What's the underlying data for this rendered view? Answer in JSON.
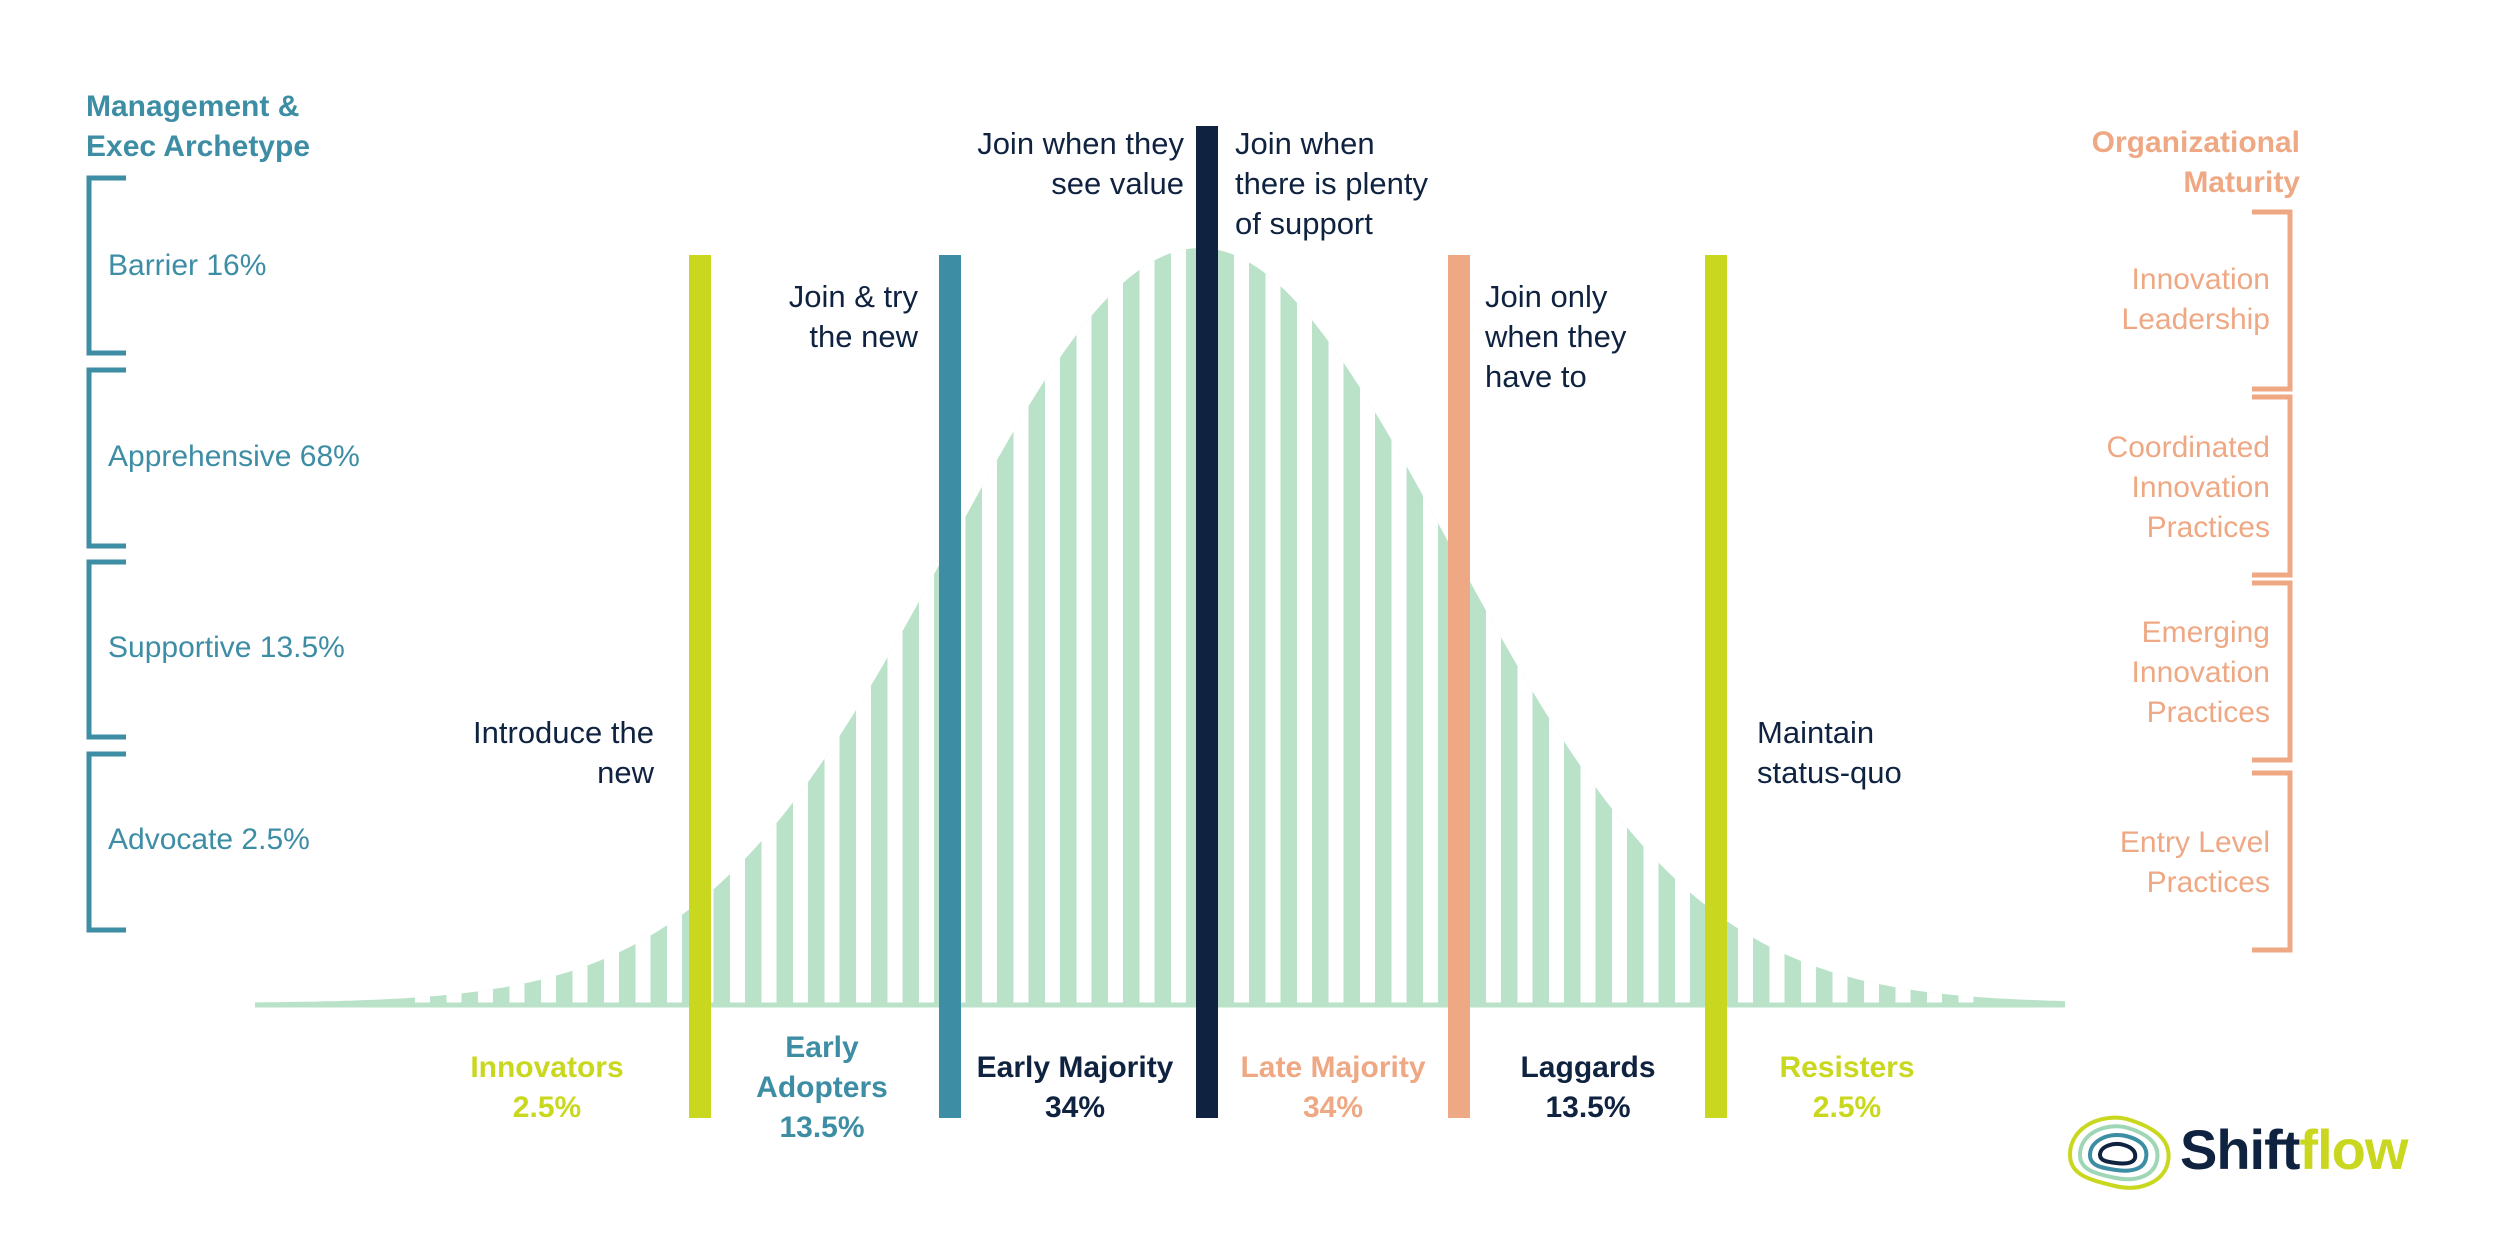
{
  "left_panel": {
    "title_line1": "Management &",
    "title_line2": "Exec Archetype",
    "items": [
      {
        "label": "Barrier 16%"
      },
      {
        "label": "Apprehensive 68%"
      },
      {
        "label": "Supportive 13.5%"
      },
      {
        "label": "Advocate 2.5%"
      }
    ]
  },
  "right_panel": {
    "title_line1": "Organizational",
    "title_line2": "Maturity",
    "items": [
      {
        "line1": "Innovation",
        "line2": "Leadership",
        "line3": ""
      },
      {
        "line1": "Coordinated",
        "line2": "Innovation",
        "line3": "Practices"
      },
      {
        "line1": "Emerging",
        "line2": "Innovation",
        "line3": "Practices"
      },
      {
        "line1": "Entry Level",
        "line2": "Practices",
        "line3": ""
      }
    ]
  },
  "annotations": {
    "introduce": {
      "line1": "Introduce the",
      "line2": "new"
    },
    "join_try": {
      "line1": "Join & try",
      "line2": "the new"
    },
    "see_value": {
      "line1": "Join when they",
      "line2": "see value"
    },
    "support": {
      "line1": "Join when",
      "line2": "there is plenty",
      "line3": "of support"
    },
    "only_when": {
      "line1": "Join only",
      "line2": "when they",
      "line3": "have to"
    },
    "status_quo": {
      "line1": "Maintain",
      "line2": "status-quo"
    }
  },
  "segments": [
    {
      "name_line1": "Innovators",
      "name_line2": "",
      "value": "2.5%"
    },
    {
      "name_line1": "Early",
      "name_line2": "Adopters",
      "value": "13.5%"
    },
    {
      "name_line1": "Early Majority",
      "name_line2": "",
      "value": "34%"
    },
    {
      "name_line1": "Late Majority",
      "name_line2": "",
      "value": "34%"
    },
    {
      "name_line1": "Laggards",
      "name_line2": "",
      "value": "13.5%"
    },
    {
      "name_line1": "Resisters",
      "name_line2": "",
      "value": "2.5%"
    }
  ],
  "logo": {
    "text_part1": "Shift",
    "text_part2": "flow"
  },
  "colors": {
    "teal": "#3d8ea5",
    "peach": "#efa884",
    "lime": "#c9d81f",
    "navy": "#0f2340",
    "curve_fill": "#b9e2c8"
  },
  "curve": {
    "mean": 1200,
    "sd": 250,
    "height": 755
  }
}
